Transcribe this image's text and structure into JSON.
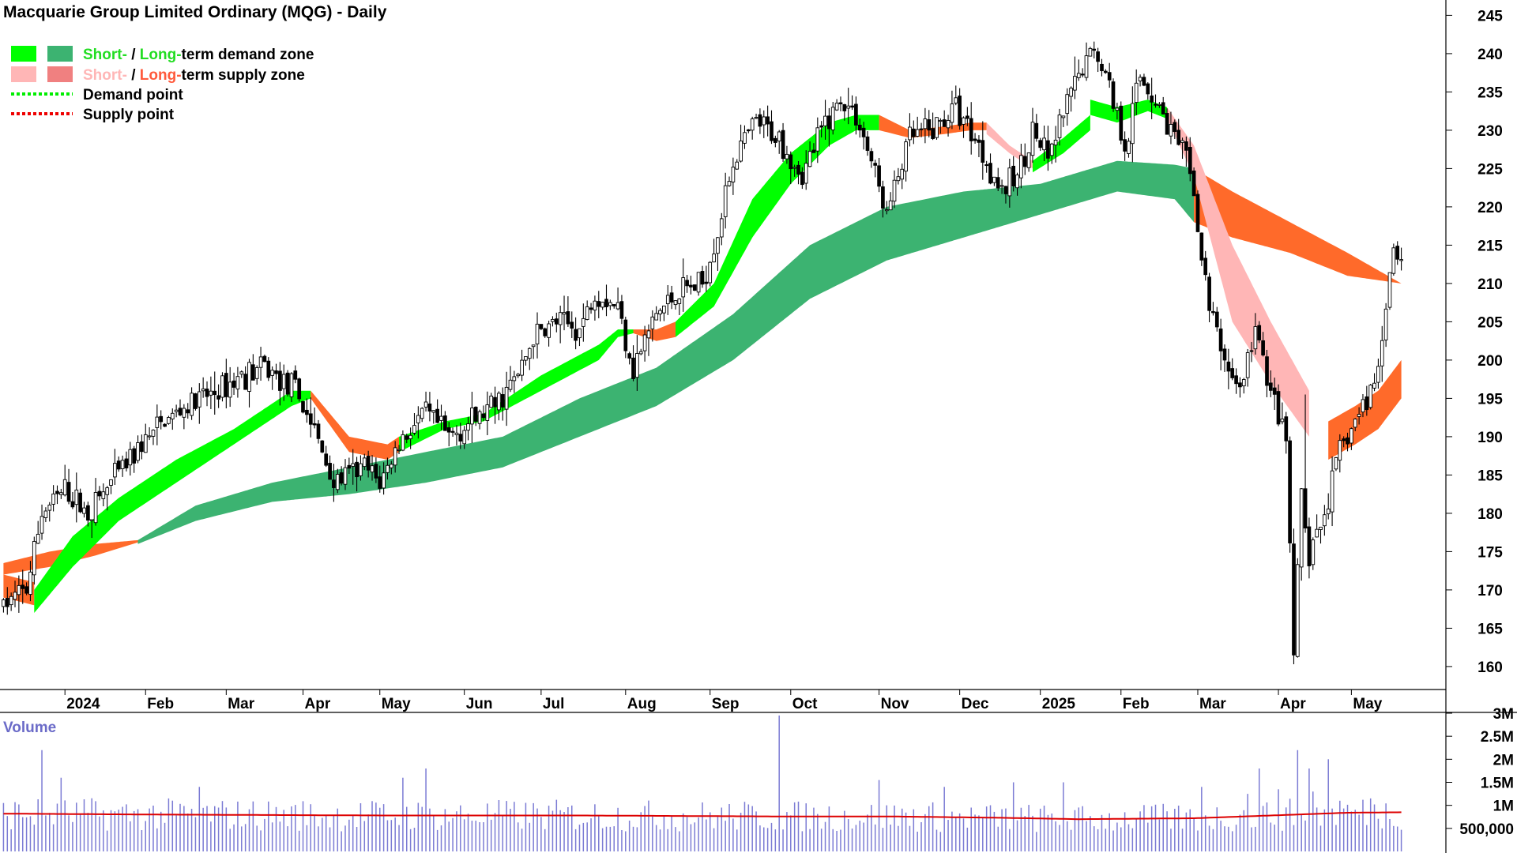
{
  "chart_data": {
    "type": "candlestick",
    "title": "Macquarie Group Limited Ordinary (MQG) - Daily",
    "legend": {
      "placement": "top-left",
      "entries": [
        {
          "id": "demand",
          "parts": [
            {
              "text": "Short-",
              "color": "#22dd22"
            },
            {
              "text": " / ",
              "color": "#000000"
            },
            {
              "text": "Long-",
              "color": "#22dd22"
            },
            {
              "text": "term demand zone",
              "color": "#000000"
            }
          ],
          "swatches": [
            "#00ff00",
            "#3cb371"
          ]
        },
        {
          "id": "supply",
          "parts": [
            {
              "text": "Short-",
              "color": "#ffb6b6"
            },
            {
              "text": " / ",
              "color": "#000000"
            },
            {
              "text": "Long-",
              "color": "#ff5a3c"
            },
            {
              "text": "term supply zone",
              "color": "#000000"
            }
          ],
          "swatches": [
            "#ffb6b6",
            "#f08080"
          ]
        },
        {
          "id": "demand-point",
          "parts": [
            {
              "text": "Demand point",
              "color": "#000000"
            }
          ],
          "line_color": "#00ee00"
        },
        {
          "id": "supply-point",
          "parts": [
            {
              "text": "Supply point",
              "color": "#000000"
            }
          ],
          "line_color": "#ee0000"
        }
      ]
    },
    "price_axis": {
      "range": [
        157,
        247
      ],
      "ticks": [
        160,
        165,
        170,
        175,
        180,
        185,
        190,
        195,
        200,
        205,
        210,
        215,
        220,
        225,
        230,
        235,
        240,
        245
      ],
      "position": "right"
    },
    "x_axis": {
      "labels": [
        {
          "text": "2024",
          "bold": true,
          "index": 16
        },
        {
          "text": "Feb",
          "index": 37
        },
        {
          "text": "Mar",
          "index": 58
        },
        {
          "text": "Apr",
          "index": 78
        },
        {
          "text": "May",
          "index": 98
        },
        {
          "text": "Jun",
          "index": 120
        },
        {
          "text": "Jul",
          "index": 140
        },
        {
          "text": "Aug",
          "index": 162
        },
        {
          "text": "Sep",
          "index": 184
        },
        {
          "text": "Oct",
          "index": 205
        },
        {
          "text": "Nov",
          "index": 228
        },
        {
          "text": "Dec",
          "index": 249
        },
        {
          "text": "2025",
          "bold": true,
          "index": 270
        },
        {
          "text": "Feb",
          "index": 291
        },
        {
          "text": "Mar",
          "index": 311
        },
        {
          "text": "Apr",
          "index": 332
        },
        {
          "text": "May",
          "index": 351
        }
      ],
      "total_days": 365
    },
    "price_anchors": [
      [
        0,
        168
      ],
      [
        6,
        170
      ],
      [
        10,
        180
      ],
      [
        16,
        183
      ],
      [
        22,
        180
      ],
      [
        28,
        184
      ],
      [
        36,
        189
      ],
      [
        42,
        192
      ],
      [
        48,
        194
      ],
      [
        56,
        196
      ],
      [
        62,
        198
      ],
      [
        68,
        199
      ],
      [
        76,
        196
      ],
      [
        80,
        192
      ],
      [
        86,
        184
      ],
      [
        94,
        186
      ],
      [
        98,
        184
      ],
      [
        104,
        190
      ],
      [
        110,
        193
      ],
      [
        116,
        190
      ],
      [
        122,
        192
      ],
      [
        128,
        194
      ],
      [
        134,
        198
      ],
      [
        138,
        203
      ],
      [
        144,
        205
      ],
      [
        150,
        204
      ],
      [
        154,
        209
      ],
      [
        160,
        207
      ],
      [
        164,
        199
      ],
      [
        170,
        206
      ],
      [
        176,
        209
      ],
      [
        182,
        210
      ],
      [
        186,
        217
      ],
      [
        190,
        226
      ],
      [
        196,
        231
      ],
      [
        202,
        229
      ],
      [
        208,
        224
      ],
      [
        214,
        231
      ],
      [
        218,
        234
      ],
      [
        222,
        232
      ],
      [
        226,
        226
      ],
      [
        230,
        219
      ],
      [
        236,
        229
      ],
      [
        242,
        230
      ],
      [
        248,
        233
      ],
      [
        252,
        230
      ],
      [
        256,
        226
      ],
      [
        260,
        222
      ],
      [
        264,
        224
      ],
      [
        268,
        230
      ],
      [
        272,
        226
      ],
      [
        276,
        232
      ],
      [
        280,
        237
      ],
      [
        284,
        241
      ],
      [
        288,
        236
      ],
      [
        292,
        228
      ],
      [
        296,
        237
      ],
      [
        300,
        234
      ],
      [
        304,
        230
      ],
      [
        308,
        226
      ],
      [
        310,
        222
      ],
      [
        312,
        213
      ],
      [
        314,
        207
      ],
      [
        318,
        200
      ],
      [
        322,
        196
      ],
      [
        326,
        204
      ],
      [
        330,
        196
      ],
      [
        334,
        189
      ],
      [
        336,
        162
      ],
      [
        338,
        182
      ],
      [
        340,
        174
      ],
      [
        344,
        180
      ],
      [
        348,
        188
      ],
      [
        352,
        192
      ],
      [
        356,
        196
      ],
      [
        358,
        199
      ],
      [
        360,
        208
      ],
      [
        362,
        215
      ],
      [
        364,
        213
      ]
    ],
    "zones": {
      "long_term": [
        {
          "range": [
            0,
            35
          ],
          "state": "supply",
          "anchors": [
            [
              0,
              173.5,
              172
            ],
            [
              12,
              175,
              173
            ],
            [
              24,
              176,
              174.5
            ],
            [
              35,
              176.5,
              176.2
            ]
          ]
        },
        {
          "range": [
            35,
            310
          ],
          "state": "demand",
          "anchors": [
            [
              35,
              176.5,
              176
            ],
            [
              50,
              181,
              179
            ],
            [
              70,
              184,
              181.5
            ],
            [
              90,
              186,
              182.5
            ],
            [
              110,
              188,
              184
            ],
            [
              130,
              190,
              186
            ],
            [
              150,
              195,
              190
            ],
            [
              170,
              199,
              194
            ],
            [
              190,
              206,
              200
            ],
            [
              210,
              215,
              208
            ],
            [
              230,
              220,
              213
            ],
            [
              250,
              222,
              216
            ],
            [
              270,
              223,
              219
            ],
            [
              290,
              226,
              222
            ],
            [
              305,
              225.5,
              221
            ],
            [
              310,
              225,
              218
            ]
          ]
        },
        {
          "range": [
            310,
            364
          ],
          "state": "supply",
          "anchors": [
            [
              310,
              225,
              218
            ],
            [
              320,
              222,
              216
            ],
            [
              335,
              218,
              214
            ],
            [
              350,
              214,
              211
            ],
            [
              364,
              210,
              210
            ]
          ]
        }
      ],
      "short_term": [
        {
          "range": [
            0,
            8
          ],
          "state": "supply",
          "anchors": [
            [
              0,
              172,
              169
            ],
            [
              8,
              171,
              168
            ]
          ]
        },
        {
          "range": [
            8,
            80
          ],
          "state": "demand",
          "anchors": [
            [
              8,
              170,
              167
            ],
            [
              18,
              177,
              173
            ],
            [
              30,
              182,
              179
            ],
            [
              45,
              187,
              184
            ],
            [
              60,
              191,
              189
            ],
            [
              75,
              196,
              194
            ],
            [
              80,
              196,
              195
            ]
          ]
        },
        {
          "range": [
            80,
            103
          ],
          "state": "supply",
          "anchors": [
            [
              80,
              196,
              195
            ],
            [
              90,
              190,
              188
            ],
            [
              100,
              189,
              187
            ],
            [
              103,
              190,
              188
            ]
          ]
        },
        {
          "range": [
            103,
            164
          ],
          "state": "demand",
          "anchors": [
            [
              103,
              190,
              188
            ],
            [
              115,
              192,
              191
            ],
            [
              125,
              193,
              192
            ],
            [
              140,
              198,
              196
            ],
            [
              155,
              202,
              200
            ],
            [
              160,
              204,
              203
            ],
            [
              164,
              204,
              203.5
            ]
          ]
        },
        {
          "range": [
            164,
            175
          ],
          "state": "supply",
          "anchors": [
            [
              164,
              204,
              203.5
            ],
            [
              170,
              204,
              202.5
            ],
            [
              175,
              205,
              203
            ]
          ]
        },
        {
          "range": [
            175,
            228
          ],
          "state": "demand",
          "anchors": [
            [
              175,
              205,
              203
            ],
            [
              185,
              210,
              207
            ],
            [
              195,
              221,
              216
            ],
            [
              205,
              227,
              223
            ],
            [
              215,
              231,
              228
            ],
            [
              222,
              232,
              230
            ],
            [
              228,
              232,
              230
            ]
          ]
        },
        {
          "range": [
            228,
            256
          ],
          "state": "supply",
          "anchors": [
            [
              228,
              232,
              230
            ],
            [
              236,
              230,
              229
            ],
            [
              245,
              230.5,
              229.5
            ],
            [
              252,
              231,
              230
            ],
            [
              256,
              231,
              230
            ]
          ]
        },
        {
          "range": [
            256,
            268
          ],
          "state": "supply-light",
          "anchors": [
            [
              256,
              231,
              229.5
            ],
            [
              262,
              228,
              227
            ],
            [
              268,
              226,
              225
            ]
          ]
        },
        {
          "range": [
            268,
            283
          ],
          "state": "demand",
          "anchors": [
            [
              268,
              226,
              224.5
            ],
            [
              276,
              229,
              227
            ],
            [
              283,
              232,
              230
            ]
          ]
        },
        {
          "range": [
            283,
            303
          ],
          "state": "demand",
          "anchors": [
            [
              283,
              234,
              232
            ],
            [
              290,
              233,
              231
            ],
            [
              298,
              234,
              232.5
            ],
            [
              303,
              233,
              231.5
            ]
          ]
        },
        {
          "range": [
            303,
            340
          ],
          "state": "supply-light",
          "anchors": [
            [
              303,
              233,
              231.5
            ],
            [
              310,
              228,
              224
            ],
            [
              320,
              215,
              205
            ],
            [
              330,
              205,
              197
            ],
            [
              340,
              196,
              190
            ],
            [
              345,
              192,
              187
            ]
          ]
        },
        {
          "range": [
            345,
            364
          ],
          "state": "supply",
          "anchors": [
            [
              345,
              192,
              187
            ],
            [
              352,
              194,
              189
            ],
            [
              358,
              196,
              191
            ],
            [
              364,
              200,
              195
            ]
          ]
        }
      ]
    },
    "volume": {
      "label": "Volume",
      "range": [
        0,
        3000000
      ],
      "ticks": [
        {
          "v": 500000,
          "label": "500,000"
        },
        {
          "v": 1000000,
          "label": "1M"
        },
        {
          "v": 1500000,
          "label": "1.5M"
        },
        {
          "v": 2000000,
          "label": "2M"
        },
        {
          "v": 2500000,
          "label": "2.5M"
        },
        {
          "v": 3000000,
          "label": "3M"
        }
      ],
      "average_level": [
        [
          0,
          820000
        ],
        [
          40,
          800000
        ],
        [
          100,
          780000
        ],
        [
          150,
          780000
        ],
        [
          200,
          760000
        ],
        [
          230,
          760000
        ],
        [
          260,
          730000
        ],
        [
          280,
          700000
        ],
        [
          310,
          720000
        ],
        [
          330,
          780000
        ],
        [
          350,
          840000
        ],
        [
          364,
          850000
        ]
      ],
      "spikes": [
        [
          10,
          2200000
        ],
        [
          15,
          1600000
        ],
        [
          51,
          1400000
        ],
        [
          104,
          1600000
        ],
        [
          110,
          1800000
        ],
        [
          202,
          2950000
        ],
        [
          228,
          1550000
        ],
        [
          245,
          1400000
        ],
        [
          263,
          1500000
        ],
        [
          276,
          1500000
        ],
        [
          312,
          1400000
        ],
        [
          324,
          1250000
        ],
        [
          327,
          1800000
        ],
        [
          332,
          1350000
        ],
        [
          337,
          2200000
        ],
        [
          340,
          1800000
        ],
        [
          341,
          1300000
        ],
        [
          345,
          2000000
        ],
        [
          348,
          1100000
        ],
        [
          356,
          1150000
        ]
      ]
    },
    "colors": {
      "demand_short": "#00ff00",
      "demand_long": "#3cb371",
      "supply_short": "#ffb6b6",
      "supply_long": "#ff6a2a",
      "volume_bar": "#7b7bd4",
      "volume_avg": "#dd0000"
    }
  }
}
